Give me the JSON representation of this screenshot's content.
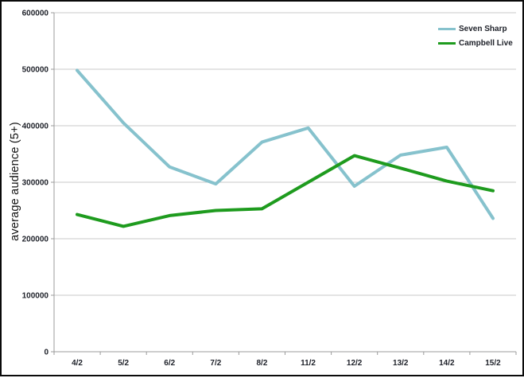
{
  "chart_data": {
    "type": "line",
    "ylabel": "average audience (5+)",
    "xlabel": "",
    "categories": [
      "4/2",
      "5/2",
      "6/2",
      "7/2",
      "8/2",
      "11/2",
      "12/2",
      "13/2",
      "14/2",
      "15/2"
    ],
    "series": [
      {
        "name": "Seven Sharp",
        "color": "#86C2CD",
        "values": [
          498000,
          405000,
          327000,
          297000,
          371000,
          396000,
          293000,
          348000,
          362000,
          236000
        ]
      },
      {
        "name": "Campbell Live",
        "color": "#1E9B1E",
        "values": [
          243000,
          222000,
          241000,
          250000,
          253000,
          300000,
          347000,
          325000,
          302000,
          285000
        ]
      }
    ],
    "ylim": [
      0,
      600000
    ],
    "ytick_step": 100000,
    "ytick_labels": [
      "0",
      "100000",
      "200000",
      "300000",
      "400000",
      "500000",
      "600000"
    ],
    "grid": true,
    "legend_position": "top-right"
  },
  "colors": {
    "grid": "#c9c9c9",
    "axis": "#9b9b9b",
    "tick_text": "#20232b",
    "background": "#ffffff",
    "frame_border": "#0a0a0a"
  }
}
